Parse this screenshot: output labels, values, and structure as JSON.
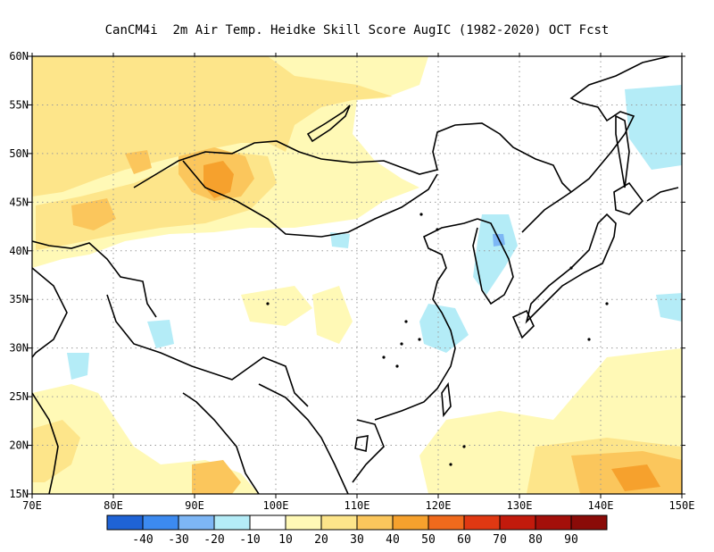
{
  "title": "CanCM4i  2m Air Temp. Heidke Skill Score AugIC (1982-2020) OCT Fcst",
  "lon_ticks": [
    "70E",
    "80E",
    "90E",
    "100E",
    "110E",
    "120E",
    "130E",
    "140E",
    "150E"
  ],
  "lat_ticks": [
    "60N",
    "55N",
    "50N",
    "45N",
    "40N",
    "35N",
    "30N",
    "25N",
    "20N",
    "15N"
  ],
  "colorbar": {
    "colors": [
      "#1f63d6",
      "#3c8af0",
      "#7db6f5",
      "#b4ecf7",
      "#ffffff",
      "#fff9b6",
      "#fde58a",
      "#fbc65c",
      "#f6a12d",
      "#f06a1c",
      "#e03812",
      "#c21a0c",
      "#a30f0a",
      "#8a0b08"
    ],
    "labels": [
      "-40",
      "-30",
      "-20",
      "-10",
      "10",
      "20",
      "30",
      "40",
      "50",
      "60",
      "70",
      "80",
      "90"
    ]
  },
  "colors": {
    "light_yellow": "#fff9b6",
    "yellow": "#fde58a",
    "orange": "#fbc65c",
    "dark_orange": "#f6a12d",
    "cyan": "#b4ecf7",
    "blue": "#7db6f5"
  }
}
